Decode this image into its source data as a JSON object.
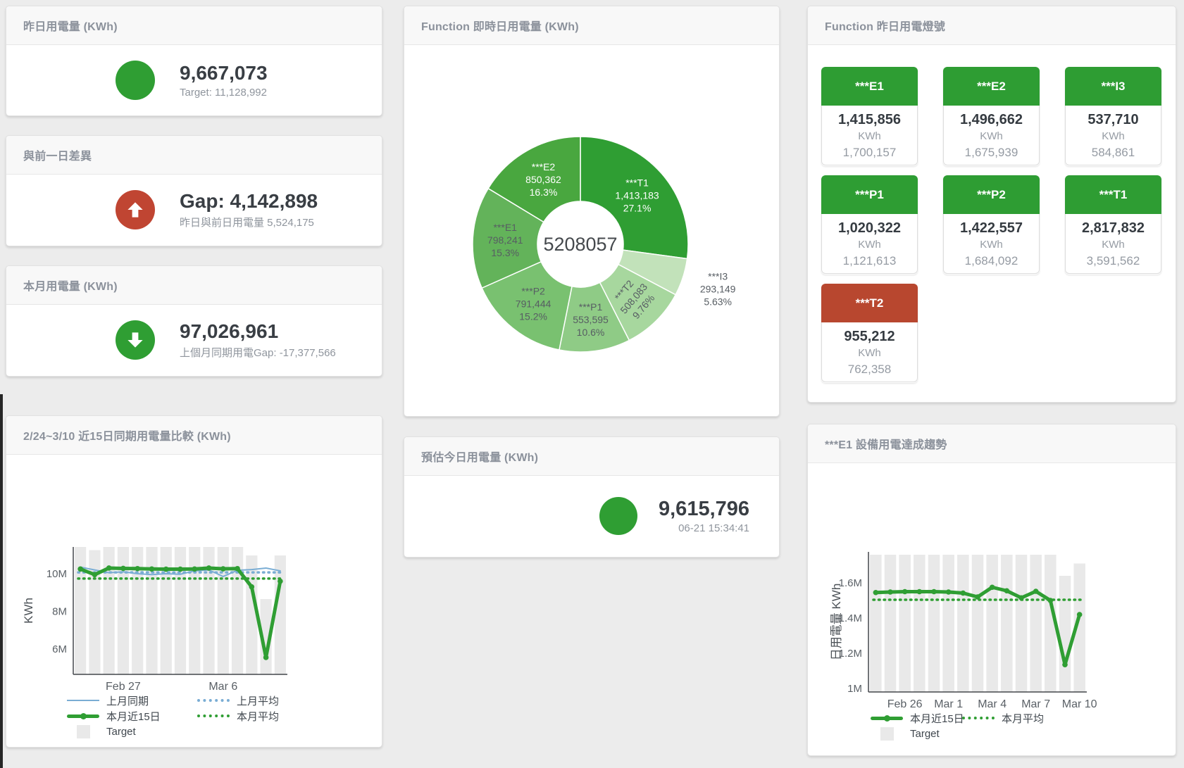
{
  "colors": {
    "green": "#2f9e33",
    "red": "#c04532",
    "blue": "#7aadd4",
    "target_bar": "#e9e9e9"
  },
  "panels": {
    "yesterday": {
      "title": "昨日用電量 (KWh)",
      "value": "9,667,073",
      "subtext": "Target: 11,128,992",
      "indicator": "green-circle"
    },
    "day_gap": {
      "title": "與前一日差異",
      "value": "Gap: 4,142,898",
      "subtext": "昨日與前日用電量 5,524,175",
      "indicator": "red-up-arrow"
    },
    "month": {
      "title": "本月用電量 (KWh)",
      "value": "97,026,961",
      "subtext": "上個月同期用電Gap: -17,377,566",
      "indicator": "green-down-arrow"
    },
    "estimate": {
      "title": "預估今日用電量 (KWh)",
      "value": "9,615,796",
      "subtext": "06-21 15:34:41",
      "indicator": "green-circle"
    },
    "realtime": {
      "title": "Function 即時日用電量 (KWh)"
    },
    "compare": {
      "title": "2/24~3/10 近15日同期用電量比較 (KWh)"
    },
    "lamps": {
      "title": "Function 昨日用電燈號",
      "unit": "KWh",
      "tiles": [
        {
          "label": "***E1",
          "value": "1,415,856",
          "target": "1,700,157",
          "status": "ok"
        },
        {
          "label": "***E2",
          "value": "1,496,662",
          "target": "1,675,939",
          "status": "ok"
        },
        {
          "label": "***I3",
          "value": "537,710",
          "target": "584,861",
          "status": "ok"
        },
        {
          "label": "***P1",
          "value": "1,020,322",
          "target": "1,121,613",
          "status": "ok"
        },
        {
          "label": "***P2",
          "value": "1,422,557",
          "target": "1,684,092",
          "status": "ok"
        },
        {
          "label": "***T1",
          "value": "2,817,832",
          "target": "3,591,562",
          "status": "ok"
        },
        {
          "label": "***T2",
          "value": "955,212",
          "target": "762,358",
          "status": "alert"
        }
      ]
    },
    "trend": {
      "title": "***E1 設備用電達成趨勢"
    }
  },
  "chart_data": [
    {
      "id": "realtime_donut",
      "type": "pie",
      "title": "Function 即時日用電量 (KWh)",
      "center_total": "5208057",
      "layout": {
        "start_angle": "top",
        "direction": "clockwise",
        "inner_radius": 61,
        "outer_radius": 153
      },
      "slices": [
        {
          "name": "***T1",
          "value": 1413183,
          "value_label": "1,413,183",
          "pct": "27.1%",
          "color": "#2f9e33",
          "label_color": "#ffffff"
        },
        {
          "name": "***I3",
          "value": 293149,
          "value_label": "293,149",
          "pct": "5.63%",
          "color": "#c2e2ba",
          "label_color": "#575d63",
          "label_outside": true
        },
        {
          "name": "***T2",
          "value": 508083,
          "value_label": "508,083",
          "pct": "9.76%",
          "color": "#a7d79e",
          "label_color": "#575d63",
          "label_rotate": -50
        },
        {
          "name": "***P1",
          "value": 553595,
          "value_label": "553,595",
          "pct": "10.6%",
          "color": "#8fcb86",
          "label_color": "#575d63"
        },
        {
          "name": "***P2",
          "value": 791444,
          "value_label": "791,444",
          "pct": "15.2%",
          "color": "#79c170",
          "label_color": "#575d63"
        },
        {
          "name": "***E1",
          "value": 798241,
          "value_label": "798,241",
          "pct": "15.3%",
          "color": "#63b35a",
          "label_color": "#575d63"
        },
        {
          "name": "***E2",
          "value": 850362,
          "value_label": "850,362",
          "pct": "16.3%",
          "color": "#49a73f",
          "label_color": "#ffffff"
        }
      ]
    },
    {
      "id": "compare_15day",
      "type": "line",
      "title": "2/24~3/10 近15日同期用電量比較 (KWh)",
      "ylabel": "KWh",
      "unit": "M KWh",
      "ylim": [
        4.65,
        11.42
      ],
      "categories": [
        "2/24",
        "2/25",
        "2/26",
        "2/27",
        "2/28",
        "3/1",
        "3/2",
        "3/3",
        "3/4",
        "3/5",
        "3/6",
        "3/7",
        "3/8",
        "3/9",
        "3/10"
      ],
      "y_ticks": [
        {
          "value": 6,
          "label": "6M"
        },
        {
          "value": 8,
          "label": "8M"
        },
        {
          "value": 10,
          "label": "10M"
        }
      ],
      "x_ticks": [
        {
          "index": 3,
          "label": "Feb 27"
        },
        {
          "index": 10,
          "label": "Mar 6"
        }
      ],
      "target": {
        "name": "Target",
        "color": "#e9e9e9",
        "values": [
          11.42,
          11.25,
          11.42,
          11.42,
          11.42,
          11.42,
          11.42,
          11.42,
          11.42,
          11.42,
          11.42,
          11.42,
          10.97,
          8.65,
          10.97
        ]
      },
      "series": [
        {
          "name": "上月同期",
          "style": "line-thin",
          "color": "#7aadd4",
          "values": [
            10.35,
            10.2,
            10.05,
            10.1,
            10.0,
            9.95,
            10.0,
            9.97,
            10.15,
            10.2,
            9.85,
            10.18,
            10.22,
            10.3,
            10.15
          ]
        },
        {
          "name": "上月平均",
          "style": "dotted",
          "color": "#7aadd4",
          "value": 10.07
        },
        {
          "name": "本月近15日",
          "style": "line-thick",
          "color": "#2f9e33",
          "values": [
            10.25,
            9.95,
            10.3,
            10.28,
            10.27,
            10.25,
            10.24,
            10.24,
            10.25,
            10.3,
            10.26,
            10.27,
            9.3,
            5.55,
            9.6
          ]
        },
        {
          "name": "本月平均",
          "style": "dotted",
          "color": "#2f9e33",
          "value": 9.74
        }
      ]
    },
    {
      "id": "e1_trend",
      "type": "line",
      "title": "***E1 設備用電達成趨勢",
      "ylabel": "日用電量 KWh",
      "unit": "M KWh",
      "ylim": [
        0.98,
        1.776
      ],
      "categories": [
        "2/24",
        "2/25",
        "2/26",
        "2/27",
        "2/28",
        "3/1",
        "3/2",
        "3/3",
        "3/4",
        "3/5",
        "3/6",
        "3/7",
        "3/8",
        "3/9",
        "3/10"
      ],
      "y_ticks": [
        {
          "value": 1,
          "label": "1M"
        },
        {
          "value": 1.2,
          "label": "1.2M"
        },
        {
          "value": 1.4,
          "label": "1.4M"
        },
        {
          "value": 1.6,
          "label": "1.6M"
        }
      ],
      "x_ticks": [
        {
          "index": 2,
          "label": "Feb 26"
        },
        {
          "index": 5,
          "label": "Mar 1"
        },
        {
          "index": 8,
          "label": "Mar 4"
        },
        {
          "index": 11,
          "label": "Mar 7"
        },
        {
          "index": 14,
          "label": "Mar 10"
        }
      ],
      "target": {
        "name": "Target",
        "color": "#e9e9e9",
        "values": [
          1.76,
          1.76,
          1.76,
          1.76,
          1.76,
          1.76,
          1.76,
          1.76,
          1.76,
          1.76,
          1.76,
          1.76,
          1.76,
          1.64,
          1.71
        ]
      },
      "series": [
        {
          "name": "本月近15日",
          "style": "line-thick",
          "color": "#2f9e33",
          "values": [
            1.545,
            1.548,
            1.55,
            1.55,
            1.55,
            1.548,
            1.542,
            1.52,
            1.575,
            1.555,
            1.515,
            1.552,
            1.5,
            1.135,
            1.42
          ]
        },
        {
          "name": "本月平均",
          "style": "dotted",
          "color": "#2f9e33",
          "value": 1.504
        }
      ]
    }
  ]
}
